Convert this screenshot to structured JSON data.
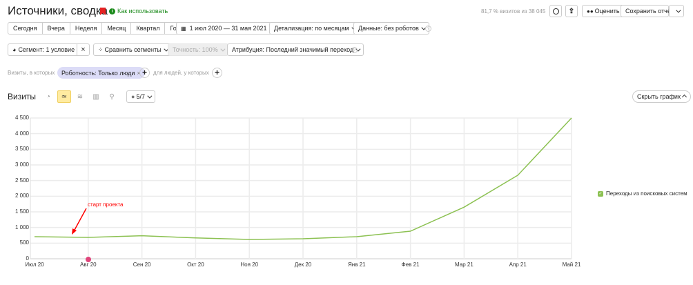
{
  "header": {
    "title": "Источники, сводка",
    "howto": "Как использовать",
    "stats": "81,7 % визитов из 38 045",
    "rate": "Оценить",
    "save": "Сохранить отчет"
  },
  "periods": [
    "Сегодня",
    "Вчера",
    "Неделя",
    "Месяц",
    "Квартал",
    "Год"
  ],
  "date_range": "1 июл 2020 — 31 мая 2021",
  "detail": "Детализация: по месяцам",
  "data_filter": "Данные: без роботов",
  "segment": "Сегмент: 1 условие",
  "compare": "Сравнить сегменты",
  "accuracy": "Точность: 100%",
  "attribution": "Атрибуция: Последний значимый переход",
  "filters": {
    "prefix": "Визиты, в которых",
    "chip": "Робoтность: Только люди",
    "people": "для людей, у которых"
  },
  "chart_header": {
    "title": "Визиты",
    "counter": "5/7",
    "hide": "Скрыть график"
  },
  "annotation": "старт проекта",
  "colors": {
    "line": "#8cc152",
    "accent": "#ffeba0",
    "annotation": "#ff0000"
  },
  "chart_data": {
    "type": "line",
    "categories": [
      "Июл 20",
      "Авг 20",
      "Сен 20",
      "Окт 20",
      "Ноя 20",
      "Дек 20",
      "Янв 21",
      "Фев 21",
      "Мар 21",
      "Апр 21",
      "Май 21"
    ],
    "series": [
      {
        "name": "Переходы из поисковых систем",
        "values": [
          706,
          684,
          735,
          668,
          618,
          640,
          706,
          882,
          1650,
          2670,
          4500
        ]
      }
    ],
    "yticks": [
      "0",
      "500",
      "1 000",
      "1 500",
      "2 000",
      "2 500",
      "3 000",
      "3 500",
      "4 000",
      "4 500"
    ],
    "ylim": [
      0,
      4500
    ],
    "grid": true,
    "legend": "right"
  }
}
